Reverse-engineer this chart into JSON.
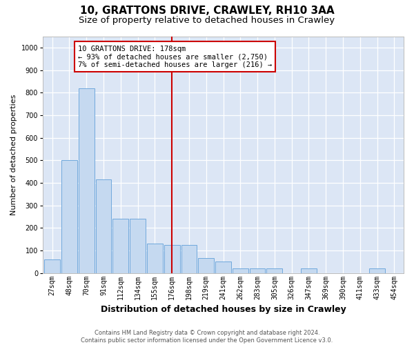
{
  "title1": "10, GRATTONS DRIVE, CRAWLEY, RH10 3AA",
  "title2": "Size of property relative to detached houses in Crawley",
  "xlabel": "Distribution of detached houses by size in Crawley",
  "ylabel": "Number of detached properties",
  "bar_labels": [
    "27sqm",
    "48sqm",
    "70sqm",
    "91sqm",
    "112sqm",
    "134sqm",
    "155sqm",
    "176sqm",
    "198sqm",
    "219sqm",
    "241sqm",
    "262sqm",
    "283sqm",
    "305sqm",
    "326sqm",
    "347sqm",
    "369sqm",
    "390sqm",
    "411sqm",
    "433sqm",
    "454sqm"
  ],
  "bar_heights": [
    60,
    500,
    820,
    415,
    240,
    240,
    130,
    125,
    125,
    65,
    50,
    20,
    20,
    20,
    0,
    20,
    0,
    0,
    0,
    20,
    0
  ],
  "bar_color": "#c5d9f0",
  "bar_edge_color": "#6fa8dc",
  "vline_x_index": 7,
  "vline_color": "#cc0000",
  "annotation_text": "10 GRATTONS DRIVE: 178sqm\n← 93% of detached houses are smaller (2,750)\n7% of semi-detached houses are larger (216) →",
  "annotation_box_color": "#ffffff",
  "annotation_box_edge": "#cc0000",
  "ylim": [
    0,
    1050
  ],
  "yticks": [
    0,
    100,
    200,
    300,
    400,
    500,
    600,
    700,
    800,
    900,
    1000
  ],
  "bg_color": "#dce6f5",
  "grid_color": "#ffffff",
  "footer1": "Contains HM Land Registry data © Crown copyright and database right 2024.",
  "footer2": "Contains public sector information licensed under the Open Government Licence v3.0.",
  "title1_fontsize": 11,
  "title2_fontsize": 9.5,
  "tick_fontsize": 7,
  "ylabel_fontsize": 8,
  "xlabel_fontsize": 9,
  "annot_fontsize": 7.5
}
